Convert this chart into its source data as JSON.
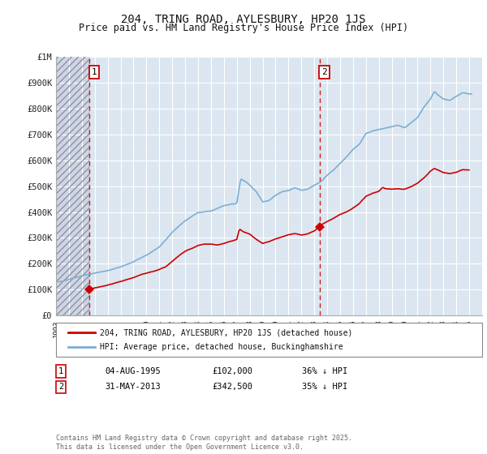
{
  "title": "204, TRING ROAD, AYLESBURY, HP20 1JS",
  "subtitle": "Price paid vs. HM Land Registry's House Price Index (HPI)",
  "ylim": [
    0,
    1000000
  ],
  "yticks": [
    0,
    100000,
    200000,
    300000,
    400000,
    500000,
    600000,
    700000,
    800000,
    900000,
    1000000
  ],
  "ytick_labels": [
    "£0",
    "£100K",
    "£200K",
    "£300K",
    "£400K",
    "£500K",
    "£600K",
    "£700K",
    "£800K",
    "£900K",
    "£1M"
  ],
  "background_color": "#ffffff",
  "plot_bg_color": "#dce6f0",
  "grid_color": "#ffffff",
  "sale1_date": 1995.58,
  "sale1_price": 102000,
  "sale2_date": 2013.41,
  "sale2_price": 342500,
  "red_line_color": "#cc0000",
  "blue_line_color": "#7bafd4",
  "marker_color": "#cc0000",
  "dashed_line_color": "#cc2222",
  "legend_label1": "204, TRING ROAD, AYLESBURY, HP20 1JS (detached house)",
  "legend_label2": "HPI: Average price, detached house, Buckinghamshire",
  "copyright_text": "Contains HM Land Registry data © Crown copyright and database right 2025.\nThis data is licensed under the Open Government Licence v3.0.",
  "xmin": 1993,
  "xmax": 2026
}
